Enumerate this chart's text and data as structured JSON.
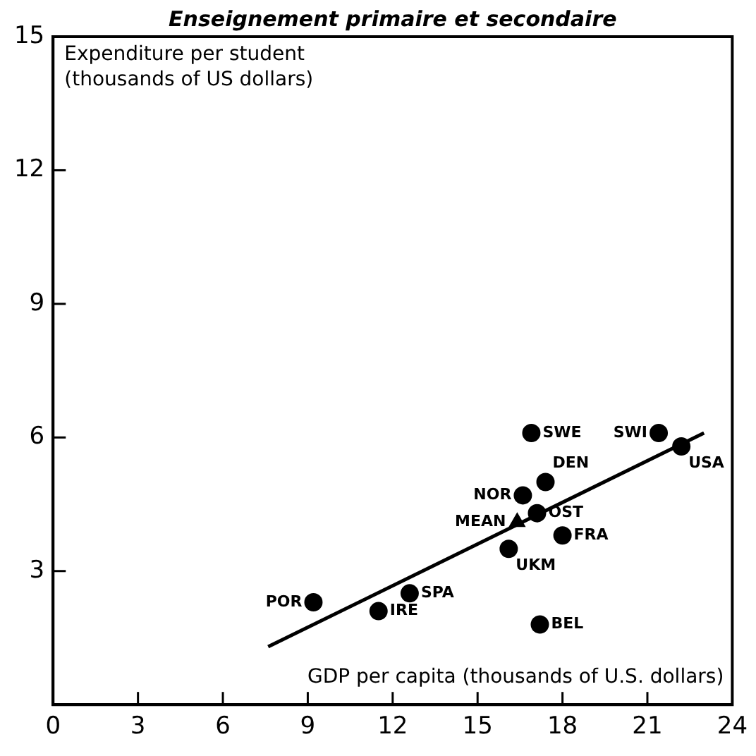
{
  "chart_data": {
    "type": "scatter",
    "title": "Enseignement primaire et secondaire",
    "xlabel": "GDP per capita (thousands of U.S. dollars)",
    "ylabel": "Expenditure per student\n(thousands of US dollars)",
    "xlim": [
      0,
      24
    ],
    "xticks": [
      0,
      3,
      6,
      9,
      12,
      15,
      18,
      21,
      24
    ],
    "ylim": [
      0,
      15
    ],
    "yticks": [
      {
        "value": 0,
        "label": null
      },
      3,
      6,
      9,
      12,
      15
    ],
    "grid": false,
    "legend": false,
    "series": [
      {
        "type": "scatter",
        "color": "#000000",
        "marker": "circle",
        "x": [
          16.9,
          21.4,
          22.2,
          17.4,
          16.6,
          17.1,
          18.0,
          16.1,
          9.2,
          12.6,
          11.5,
          17.2
        ],
        "values": [
          6.1,
          6.1,
          5.8,
          5.0,
          4.7,
          4.3,
          3.8,
          3.5,
          2.3,
          2.5,
          2.1,
          1.8
        ]
      },
      {
        "type": "scatter",
        "color": "#000000",
        "marker": "triangle",
        "x": [
          16.4
        ],
        "values": [
          4.1
        ]
      },
      {
        "type": "line",
        "color": "#000000",
        "marker": "none",
        "line_style": "solid",
        "x": [
          7.6,
          23.0
        ],
        "values": [
          1.3,
          6.1
        ]
      }
    ],
    "annotations": [
      {
        "text": "SWE",
        "x": 16.9,
        "y": 6.1
      },
      {
        "text": "SWI",
        "x": 21.4,
        "y": 6.1
      },
      {
        "text": "USA",
        "x": 22.2,
        "y": 5.8
      },
      {
        "text": "DEN",
        "x": 17.4,
        "y": 5.0
      },
      {
        "text": "NOR",
        "x": 16.6,
        "y": 4.7
      },
      {
        "text": "OST",
        "x": 17.1,
        "y": 4.3
      },
      {
        "text": "FRA",
        "x": 18.0,
        "y": 3.8
      },
      {
        "text": "UKM",
        "x": 16.1,
        "y": 3.5
      },
      {
        "text": "POR",
        "x": 9.2,
        "y": 2.3
      },
      {
        "text": "SPA",
        "x": 12.6,
        "y": 2.5
      },
      {
        "text": "IRE",
        "x": 11.5,
        "y": 2.1
      },
      {
        "text": "BEL",
        "x": 17.2,
        "y": 1.8
      },
      {
        "text": "MEAN",
        "x": 16.4,
        "y": 4.1
      }
    ]
  }
}
